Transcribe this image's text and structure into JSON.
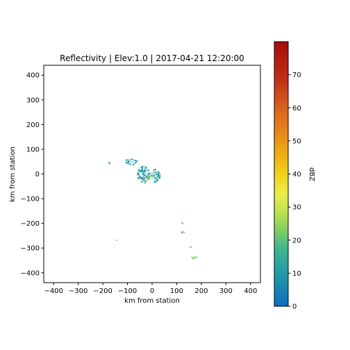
{
  "chart_data": {
    "type": "heatmap",
    "title": "Reflectivity | Elev:1.0 | 2017-04-21 12:20:00",
    "xlabel": "km from station",
    "ylabel": "km from station",
    "xlim": [
      -440,
      440
    ],
    "ylim": [
      -440,
      440
    ],
    "xticks": [
      -400,
      -300,
      -200,
      -100,
      0,
      100,
      200,
      300,
      400
    ],
    "yticks": [
      -400,
      -300,
      -200,
      -100,
      0,
      100,
      200,
      300,
      400
    ],
    "colorbar": {
      "label": "dBZ",
      "range": [
        0,
        80
      ],
      "ticks": [
        0,
        10,
        20,
        30,
        40,
        50,
        60,
        70
      ],
      "colormap": "pyart_HomeyerRainbow"
    },
    "grid": false,
    "echo_regions": [
      {
        "name": "central-cluster-main",
        "x": -35,
        "y": 0,
        "rx": 28,
        "ry": 35,
        "dbz": 10
      },
      {
        "name": "central-cluster-east",
        "x": 12,
        "y": -5,
        "rx": 18,
        "ry": 28,
        "dbz": 12
      },
      {
        "name": "central-cluster-core",
        "x": -20,
        "y": -10,
        "rx": 12,
        "ry": 12,
        "dbz": 20
      },
      {
        "name": "northwest-band",
        "x": -85,
        "y": 52,
        "rx": 28,
        "ry": 12,
        "dbz": 10
      },
      {
        "name": "west-speck",
        "x": -175,
        "y": 48,
        "rx": 4,
        "ry": 3,
        "dbz": 10
      },
      {
        "name": "southwest-cell",
        "x": -145,
        "y": -265,
        "rx": 5,
        "ry": 5,
        "dbz": 20
      },
      {
        "name": "south-cell-a",
        "x": 122,
        "y": -235,
        "rx": 14,
        "ry": 5,
        "dbz": 20
      },
      {
        "name": "south-cell-b",
        "x": 120,
        "y": -198,
        "rx": 3,
        "ry": 3,
        "dbz": 20
      },
      {
        "name": "south-cell-c",
        "x": 155,
        "y": -295,
        "rx": 4,
        "ry": 3,
        "dbz": 20
      },
      {
        "name": "south-cell-d",
        "x": 168,
        "y": -338,
        "rx": 14,
        "ry": 7,
        "dbz": 20
      }
    ]
  }
}
